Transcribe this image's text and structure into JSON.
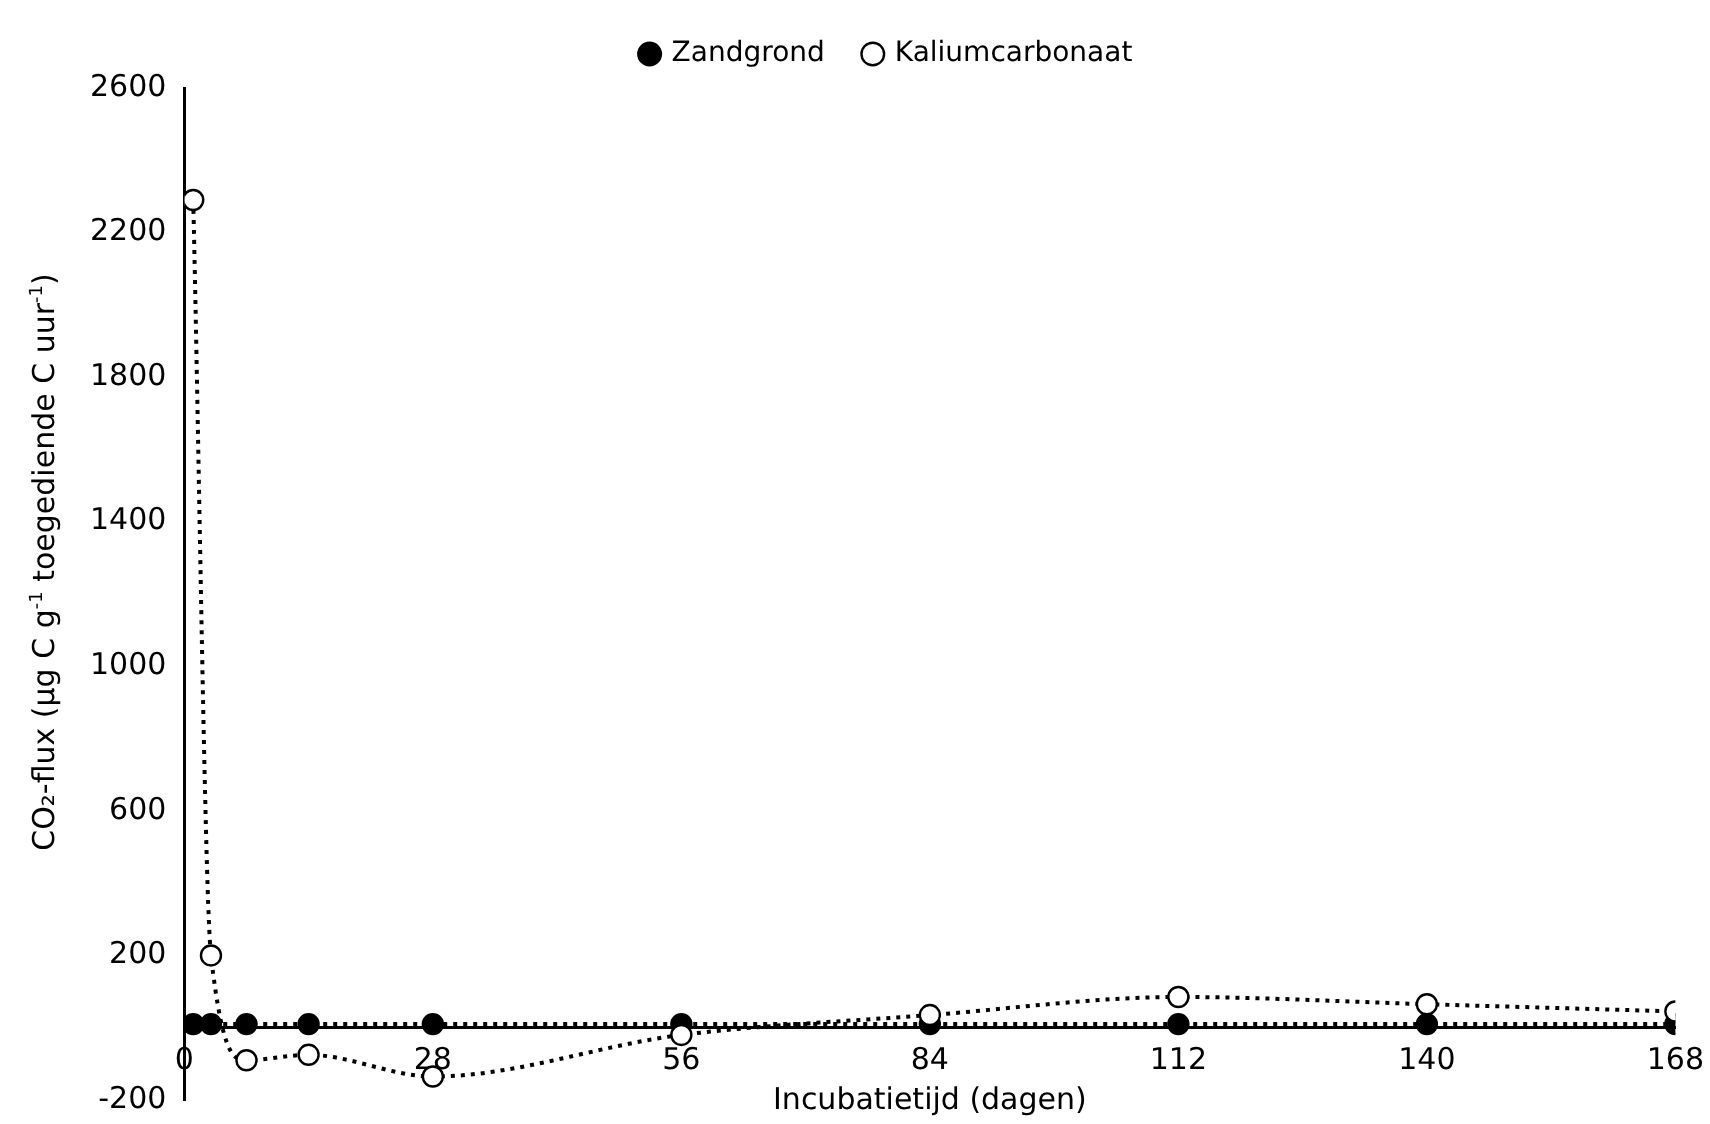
{
  "chart_data": {
    "type": "line",
    "xlabel": "Incubatietijd (dagen)",
    "ylabel": "CO₂-flux (µg C g$^{-1}$ toegediende C uur$^{-1}$)",
    "x": [
      1,
      3,
      7,
      14,
      28,
      56,
      84,
      112,
      140,
      168
    ],
    "series": [
      {
        "name": "Zandgrond",
        "color": "#000000",
        "values": [
          10,
          10,
          10,
          10,
          10,
          10,
          10,
          10,
          10,
          10
        ]
      },
      {
        "name": "Kaliumcarbonaat",
        "color": "#000000",
        "values": [
          2290,
          200,
          -90,
          -75,
          -135,
          -20,
          35,
          85,
          65,
          45
        ]
      }
    ],
    "xlim": [
      0,
      168
    ],
    "xticks": [
      0,
      28,
      56,
      84,
      112,
      140,
      168
    ],
    "ylim": [
      -200,
      2600
    ],
    "yticks": [
      -200,
      200,
      600,
      1000,
      1400,
      1800,
      2200,
      2600
    ],
    "grid": false,
    "legend": "top",
    "marker": "circle",
    "line_style": "dotted"
  }
}
